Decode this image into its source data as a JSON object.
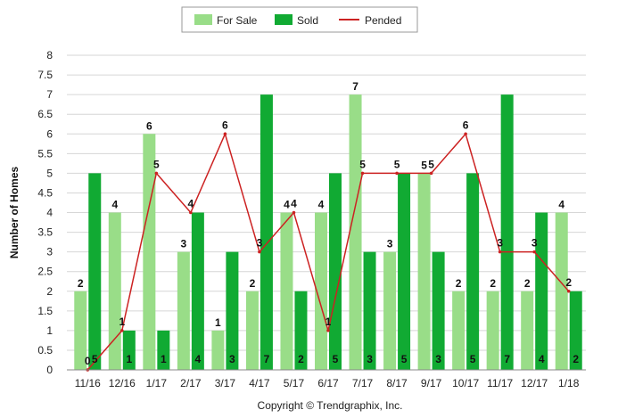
{
  "chart_data": {
    "type": "bar",
    "title": "",
    "xlabel": "",
    "ylabel": "Number of Homes",
    "ylim": [
      0,
      8
    ],
    "ytick_step": 0.5,
    "grid": true,
    "legend_position": "top-center",
    "categories": [
      "11/16",
      "12/16",
      "1/17",
      "2/17",
      "3/17",
      "4/17",
      "5/17",
      "6/17",
      "7/17",
      "8/17",
      "9/17",
      "10/17",
      "11/17",
      "12/17",
      "1/18"
    ],
    "series": [
      {
        "name": "For Sale",
        "kind": "bar",
        "color": "#99dd88",
        "values": [
          2,
          4,
          6,
          3,
          1,
          2,
          4,
          4,
          7,
          3,
          5,
          2,
          2,
          2,
          4
        ]
      },
      {
        "name": "Sold",
        "kind": "bar",
        "color": "#11aa33",
        "values": [
          5,
          1,
          1,
          4,
          3,
          7,
          2,
          5,
          3,
          5,
          3,
          5,
          7,
          4,
          2
        ]
      },
      {
        "name": "Pended",
        "kind": "line",
        "color": "#cc2222",
        "values": [
          0,
          1,
          5,
          4,
          6,
          3,
          4,
          1,
          5,
          5,
          5,
          6,
          3,
          3,
          2
        ]
      }
    ],
    "footer": "Copyright © Trendgraphix, Inc."
  }
}
